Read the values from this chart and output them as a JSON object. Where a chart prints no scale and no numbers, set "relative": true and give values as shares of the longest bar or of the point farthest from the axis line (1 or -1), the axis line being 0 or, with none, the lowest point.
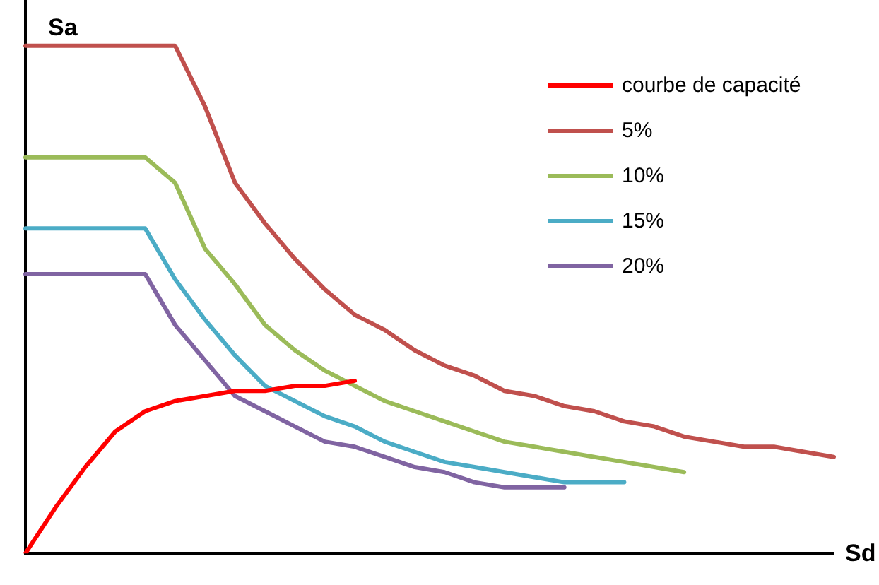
{
  "chart_data": {
    "type": "line",
    "relative": true,
    "xlabel": "Sd",
    "ylabel": "Sa",
    "legend": "top right",
    "marker": "none",
    "grid": false,
    "categories": [
      null,
      null,
      null,
      null,
      null,
      null,
      null,
      null,
      null,
      null,
      null,
      null,
      null,
      null,
      null,
      null,
      null,
      null,
      null,
      null,
      null,
      null,
      null,
      null,
      null,
      null,
      null,
      null
    ],
    "series": [
      {
        "name": "courbe de capacité",
        "color": "#ff0000",
        "values": [
          0,
          0.09,
          0.17,
          0.24,
          0.28,
          0.3,
          0.31,
          0.32,
          0.32,
          0.33,
          0.33,
          0.34,
          null,
          null,
          null,
          null,
          null,
          null,
          null,
          null,
          null,
          null,
          null,
          null,
          null,
          null,
          null,
          null
        ]
      },
      {
        "name": "5%",
        "color": "#c0504d",
        "values": [
          1,
          1,
          1,
          1,
          1,
          1,
          0.88,
          0.73,
          0.65,
          0.58,
          0.52,
          0.47,
          0.44,
          0.4,
          0.37,
          0.35,
          0.32,
          0.31,
          0.29,
          0.28,
          0.26,
          0.25,
          0.23,
          0.22,
          0.21,
          0.21,
          0.2,
          0.19
        ]
      },
      {
        "name": "10%",
        "color": "#9bbb59",
        "values": [
          0.78,
          0.78,
          0.78,
          0.78,
          0.78,
          0.73,
          0.6,
          0.53,
          0.45,
          0.4,
          0.36,
          0.33,
          0.3,
          0.28,
          0.26,
          0.24,
          0.22,
          0.21,
          0.2,
          0.19,
          0.18,
          0.17,
          0.16,
          null,
          null,
          null,
          null,
          null
        ]
      },
      {
        "name": "15%",
        "color": "#4bacc6",
        "values": [
          0.64,
          0.64,
          0.64,
          0.64,
          0.64,
          0.54,
          0.46,
          0.39,
          0.33,
          0.3,
          0.27,
          0.25,
          0.22,
          0.2,
          0.18,
          0.17,
          0.16,
          0.15,
          0.14,
          0.14,
          0.14,
          null,
          null,
          null,
          null,
          null,
          null,
          null
        ]
      },
      {
        "name": "20%",
        "color": "#8064a2",
        "values": [
          0.55,
          0.55,
          0.55,
          0.55,
          0.55,
          0.45,
          0.38,
          0.31,
          0.28,
          0.25,
          0.22,
          0.21,
          0.19,
          0.17,
          0.16,
          0.14,
          0.13,
          0.13,
          0.13,
          null,
          null,
          null,
          null,
          null,
          null,
          null,
          null,
          null
        ]
      }
    ]
  }
}
